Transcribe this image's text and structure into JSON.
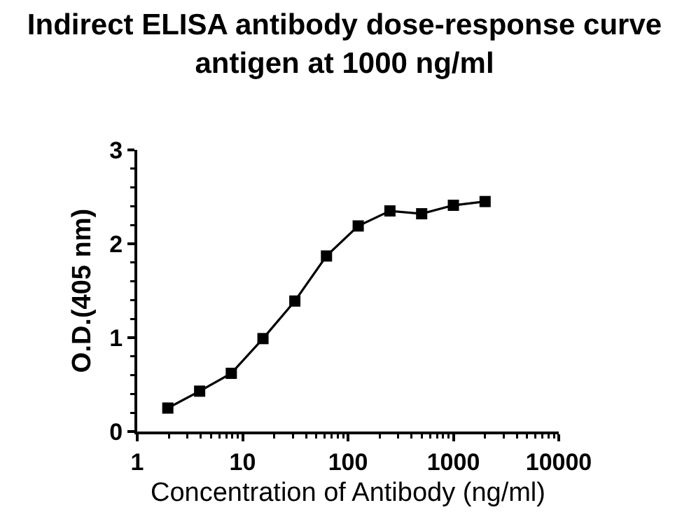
{
  "chart_data": {
    "type": "line",
    "title": "Indirect ELISA antibody dose-response curve\nantigen at 1000 ng/ml",
    "xlabel": "Concentration of Antibody (ng/ml)",
    "ylabel": "O.D.(405 nm)",
    "x": [
      1.95,
      3.91,
      7.81,
      15.6,
      31.3,
      62.5,
      125,
      250,
      500,
      1000,
      2000
    ],
    "series": [
      {
        "color": "#000000",
        "values": [
          0.25,
          0.43,
          0.62,
          0.99,
          1.39,
          1.87,
          2.19,
          2.35,
          2.32,
          2.41,
          2.45
        ]
      }
    ],
    "log": "x",
    "xlim": [
      1,
      10000
    ],
    "xticks": [
      1,
      {
        "value": 2,
        "label": null
      },
      {
        "value": 3,
        "label": null
      },
      {
        "value": 4,
        "label": null
      },
      {
        "value": 5,
        "label": null
      },
      {
        "value": 6,
        "label": null
      },
      {
        "value": 7,
        "label": null
      },
      {
        "value": 8,
        "label": null
      },
      {
        "value": 9,
        "label": null
      },
      10,
      {
        "value": 20,
        "label": null
      },
      {
        "value": 30,
        "label": null
      },
      {
        "value": 40,
        "label": null
      },
      {
        "value": 50,
        "label": null
      },
      {
        "value": 60,
        "label": null
      },
      {
        "value": 70,
        "label": null
      },
      {
        "value": 80,
        "label": null
      },
      {
        "value": 90,
        "label": null
      },
      100,
      {
        "value": 200,
        "label": null
      },
      {
        "value": 300,
        "label": null
      },
      {
        "value": 400,
        "label": null
      },
      {
        "value": 500,
        "label": null
      },
      {
        "value": 600,
        "label": null
      },
      {
        "value": 700,
        "label": null
      },
      {
        "value": 800,
        "label": null
      },
      {
        "value": 900,
        "label": null
      },
      1000,
      {
        "value": 2000,
        "label": null
      },
      {
        "value": 3000,
        "label": null
      },
      {
        "value": 4000,
        "label": null
      },
      {
        "value": 5000,
        "label": null
      },
      {
        "value": 6000,
        "label": null
      },
      {
        "value": 7000,
        "label": null
      },
      {
        "value": 8000,
        "label": null
      },
      {
        "value": 9000,
        "label": null
      },
      10000
    ],
    "ylim": [
      0,
      3
    ],
    "yticks": [
      0,
      {
        "value": 0.2,
        "label": null
      },
      {
        "value": 0.4,
        "label": null
      },
      {
        "value": 0.6,
        "label": null
      },
      {
        "value": 0.8,
        "label": null
      },
      1,
      {
        "value": 1.2,
        "label": null
      },
      {
        "value": 1.4,
        "label": null
      },
      {
        "value": 1.6,
        "label": null
      },
      {
        "value": 1.8,
        "label": null
      },
      2,
      {
        "value": 2.2,
        "label": null
      },
      {
        "value": 2.4,
        "label": null
      },
      {
        "value": 2.6,
        "label": null
      },
      {
        "value": 2.8,
        "label": null
      },
      3
    ],
    "grid": false,
    "marker": "square",
    "line_style": "solid"
  }
}
